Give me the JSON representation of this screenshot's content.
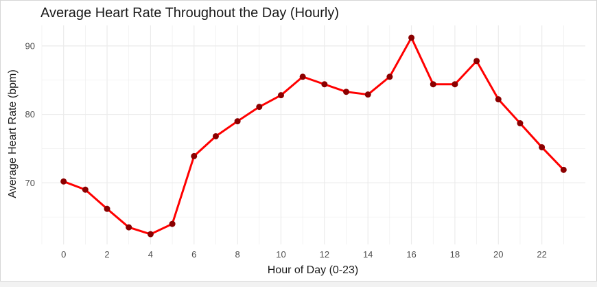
{
  "chart_data": {
    "type": "line",
    "title": "Average Heart Rate Throughout the Day (Hourly)",
    "xlabel": "Hour of Day (0-23)",
    "ylabel": "Average Heart Rate (bpm)",
    "x": [
      0,
      1,
      2,
      3,
      4,
      5,
      6,
      7,
      8,
      9,
      10,
      11,
      12,
      13,
      14,
      15,
      16,
      17,
      18,
      19,
      20,
      21,
      22,
      23
    ],
    "series": [
      {
        "values": [
          70.2,
          69.0,
          66.2,
          63.5,
          62.5,
          64.0,
          73.9,
          76.8,
          79.0,
          81.1,
          82.8,
          85.5,
          84.4,
          83.3,
          82.9,
          85.5,
          91.2,
          84.4,
          84.4,
          87.8,
          82.2,
          78.7,
          75.2,
          71.9
        ]
      }
    ],
    "xlim": [
      -1,
      24
    ],
    "ylim": [
      61,
      93
    ],
    "x_ticks": [
      "0",
      "2",
      "4",
      "6",
      "8",
      "10",
      "12",
      "14",
      "16",
      "18",
      "20",
      "22"
    ],
    "y_ticks": [
      "70",
      "80",
      "90"
    ],
    "grid": true,
    "legend": "none",
    "line_color": "#ff0000",
    "point_color": "#8b0000",
    "grid_color": "#ebebeb"
  }
}
